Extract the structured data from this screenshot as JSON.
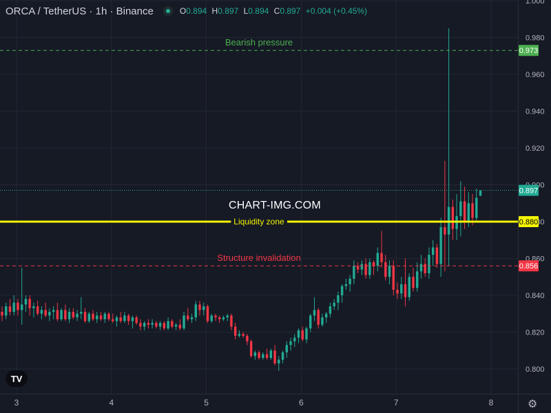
{
  "header": {
    "title": "ORCA / TetherUS · 1h · Binance",
    "o_label": "O",
    "o": "0.894",
    "h_label": "H",
    "h": "0.897",
    "l_label": "L",
    "l": "0.894",
    "c_label": "C",
    "c": "0.897",
    "change": "+0.004 (+0.45%)"
  },
  "watermark": "CHART-IMG.COM",
  "logo_text": "TV",
  "colors": {
    "background": "#161a25",
    "up": "#22ab94",
    "down": "#f23645",
    "liquidity": "#f5f500",
    "bearish": "#4caf50",
    "structure": "#f23645",
    "grid": "#232733",
    "axis_text": "#b2b5be"
  },
  "chart_data": {
    "type": "candlestick",
    "symbol": "ORCA / TetherUS",
    "interval": "1h",
    "exchange": "Binance",
    "x_ticks": [
      "3",
      "4",
      "5",
      "6",
      "7",
      "8"
    ],
    "y_ticks": [
      "0.800",
      "0.820",
      "0.840",
      "0.860",
      "0.880",
      "0.900",
      "0.920",
      "0.940",
      "0.960",
      "0.980",
      "1.000"
    ],
    "ylim": [
      0.7905,
      1.001
    ],
    "last_price": "0.897",
    "levels": [
      {
        "label": "Bearish pressure",
        "value": "0.973",
        "style": "dashed",
        "color": "#4caf50"
      },
      {
        "label": "Liquidity zone",
        "value": "0.880",
        "style": "solid",
        "color": "#f5f500"
      },
      {
        "label": "Structure invalidation",
        "value": "0.856",
        "style": "dashed",
        "color": "#f23645"
      }
    ],
    "candles": [
      [
        0.831,
        0.834,
        0.826,
        0.829
      ],
      [
        0.829,
        0.836,
        0.827,
        0.834
      ],
      [
        0.834,
        0.838,
        0.829,
        0.831
      ],
      [
        0.831,
        0.84,
        0.829,
        0.836
      ],
      [
        0.836,
        0.838,
        0.829,
        0.832
      ],
      [
        0.832,
        0.855,
        0.824,
        0.835
      ],
      [
        0.835,
        0.84,
        0.831,
        0.838
      ],
      [
        0.838,
        0.84,
        0.829,
        0.833
      ],
      [
        0.833,
        0.836,
        0.828,
        0.834
      ],
      [
        0.834,
        0.837,
        0.829,
        0.83
      ],
      [
        0.83,
        0.834,
        0.827,
        0.832
      ],
      [
        0.832,
        0.836,
        0.828,
        0.829
      ],
      [
        0.829,
        0.833,
        0.826,
        0.831
      ],
      [
        0.831,
        0.834,
        0.827,
        0.832
      ],
      [
        0.832,
        0.836,
        0.826,
        0.827
      ],
      [
        0.827,
        0.833,
        0.826,
        0.832
      ],
      [
        0.832,
        0.835,
        0.826,
        0.827
      ],
      [
        0.827,
        0.833,
        0.825,
        0.831
      ],
      [
        0.831,
        0.833,
        0.827,
        0.828
      ],
      [
        0.828,
        0.832,
        0.826,
        0.83
      ],
      [
        0.83,
        0.839,
        0.827,
        0.831
      ],
      [
        0.831,
        0.833,
        0.825,
        0.826
      ],
      [
        0.826,
        0.831,
        0.825,
        0.83
      ],
      [
        0.83,
        0.832,
        0.826,
        0.827
      ],
      [
        0.827,
        0.831,
        0.825,
        0.829
      ],
      [
        0.829,
        0.831,
        0.826,
        0.827
      ],
      [
        0.827,
        0.831,
        0.825,
        0.83
      ],
      [
        0.83,
        0.831,
        0.826,
        0.827
      ],
      [
        0.827,
        0.83,
        0.825,
        0.826
      ],
      [
        0.826,
        0.829,
        0.823,
        0.828
      ],
      [
        0.828,
        0.831,
        0.825,
        0.826
      ],
      [
        0.826,
        0.831,
        0.825,
        0.829
      ],
      [
        0.829,
        0.83,
        0.824,
        0.826
      ],
      [
        0.826,
        0.829,
        0.822,
        0.828
      ],
      [
        0.828,
        0.829,
        0.824,
        0.825
      ],
      [
        0.825,
        0.827,
        0.821,
        0.823
      ],
      [
        0.823,
        0.826,
        0.821,
        0.825
      ],
      [
        0.825,
        0.827,
        0.822,
        0.824
      ],
      [
        0.824,
        0.827,
        0.822,
        0.825
      ],
      [
        0.825,
        0.826,
        0.822,
        0.823
      ],
      [
        0.823,
        0.826,
        0.821,
        0.825
      ],
      [
        0.825,
        0.826,
        0.821,
        0.822
      ],
      [
        0.822,
        0.828,
        0.821,
        0.826
      ],
      [
        0.826,
        0.827,
        0.822,
        0.823
      ],
      [
        0.823,
        0.825,
        0.821,
        0.824
      ],
      [
        0.824,
        0.827,
        0.821,
        0.822
      ],
      [
        0.822,
        0.831,
        0.821,
        0.829
      ],
      [
        0.829,
        0.833,
        0.826,
        0.827
      ],
      [
        0.827,
        0.83,
        0.825,
        0.828
      ],
      [
        0.828,
        0.837,
        0.826,
        0.835
      ],
      [
        0.835,
        0.837,
        0.829,
        0.832
      ],
      [
        0.832,
        0.836,
        0.829,
        0.834
      ],
      [
        0.834,
        0.835,
        0.825,
        0.826
      ],
      [
        0.826,
        0.83,
        0.825,
        0.829
      ],
      [
        0.829,
        0.83,
        0.826,
        0.828
      ],
      [
        0.828,
        0.829,
        0.825,
        0.827
      ],
      [
        0.827,
        0.829,
        0.826,
        0.828
      ],
      [
        0.828,
        0.83,
        0.826,
        0.829
      ],
      [
        0.829,
        0.83,
        0.821,
        0.823
      ],
      [
        0.823,
        0.825,
        0.816,
        0.818
      ],
      [
        0.818,
        0.821,
        0.817,
        0.819
      ],
      [
        0.819,
        0.82,
        0.817,
        0.818
      ],
      [
        0.818,
        0.819,
        0.813,
        0.815
      ],
      [
        0.815,
        0.816,
        0.806,
        0.807
      ],
      [
        0.807,
        0.81,
        0.805,
        0.809
      ],
      [
        0.809,
        0.81,
        0.805,
        0.806
      ],
      [
        0.806,
        0.809,
        0.805,
        0.808
      ],
      [
        0.808,
        0.811,
        0.805,
        0.806
      ],
      [
        0.806,
        0.811,
        0.805,
        0.81
      ],
      [
        0.81,
        0.813,
        0.802,
        0.803
      ],
      [
        0.803,
        0.807,
        0.799,
        0.805
      ],
      [
        0.805,
        0.81,
        0.803,
        0.809
      ],
      [
        0.809,
        0.815,
        0.806,
        0.813
      ],
      [
        0.813,
        0.817,
        0.81,
        0.815
      ],
      [
        0.815,
        0.819,
        0.812,
        0.817
      ],
      [
        0.817,
        0.822,
        0.814,
        0.821
      ],
      [
        0.821,
        0.823,
        0.815,
        0.816
      ],
      [
        0.816,
        0.823,
        0.814,
        0.822
      ],
      [
        0.822,
        0.83,
        0.82,
        0.829
      ],
      [
        0.829,
        0.839,
        0.826,
        0.832
      ],
      [
        0.832,
        0.833,
        0.822,
        0.824
      ],
      [
        0.824,
        0.83,
        0.823,
        0.828
      ],
      [
        0.828,
        0.831,
        0.825,
        0.83
      ],
      [
        0.83,
        0.836,
        0.828,
        0.834
      ],
      [
        0.834,
        0.838,
        0.832,
        0.836
      ],
      [
        0.836,
        0.842,
        0.832,
        0.84
      ],
      [
        0.84,
        0.846,
        0.836,
        0.845
      ],
      [
        0.845,
        0.849,
        0.843,
        0.846
      ],
      [
        0.846,
        0.851,
        0.842,
        0.849
      ],
      [
        0.849,
        0.859,
        0.846,
        0.856
      ],
      [
        0.856,
        0.858,
        0.852,
        0.854
      ],
      [
        0.854,
        0.859,
        0.851,
        0.857
      ],
      [
        0.857,
        0.86,
        0.849,
        0.851
      ],
      [
        0.851,
        0.86,
        0.849,
        0.858
      ],
      [
        0.858,
        0.859,
        0.851,
        0.856
      ],
      [
        0.856,
        0.866,
        0.853,
        0.863
      ],
      [
        0.863,
        0.875,
        0.855,
        0.858
      ],
      [
        0.858,
        0.862,
        0.848,
        0.85
      ],
      [
        0.85,
        0.859,
        0.846,
        0.856
      ],
      [
        0.856,
        0.859,
        0.84,
        0.843
      ],
      [
        0.843,
        0.847,
        0.838,
        0.841
      ],
      [
        0.841,
        0.85,
        0.838,
        0.846
      ],
      [
        0.846,
        0.86,
        0.834,
        0.839
      ],
      [
        0.839,
        0.852,
        0.837,
        0.85
      ],
      [
        0.85,
        0.855,
        0.842,
        0.844
      ],
      [
        0.844,
        0.858,
        0.842,
        0.853
      ],
      [
        0.853,
        0.862,
        0.849,
        0.857
      ],
      [
        0.857,
        0.86,
        0.85,
        0.852
      ],
      [
        0.852,
        0.866,
        0.849,
        0.862
      ],
      [
        0.862,
        0.87,
        0.856,
        0.866
      ],
      [
        0.866,
        0.868,
        0.855,
        0.857
      ],
      [
        0.857,
        0.882,
        0.85,
        0.877
      ],
      [
        0.877,
        0.913,
        0.853,
        0.873
      ],
      [
        0.873,
        0.985,
        0.856,
        0.888
      ],
      [
        0.888,
        0.892,
        0.87,
        0.876
      ],
      [
        0.876,
        0.895,
        0.87,
        0.883
      ],
      [
        0.883,
        0.902,
        0.872,
        0.891
      ],
      [
        0.891,
        0.899,
        0.876,
        0.88
      ],
      [
        0.88,
        0.896,
        0.877,
        0.89
      ],
      [
        0.89,
        0.895,
        0.878,
        0.882
      ],
      [
        0.882,
        0.898,
        0.88,
        0.893
      ],
      [
        0.894,
        0.897,
        0.894,
        0.897
      ]
    ]
  }
}
